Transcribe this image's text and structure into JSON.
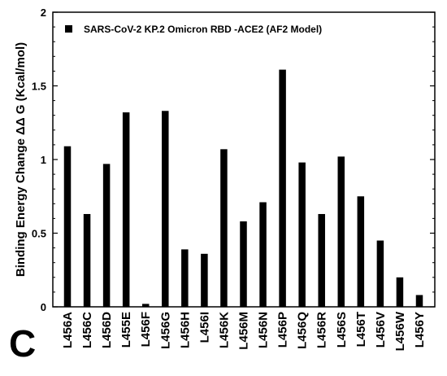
{
  "panel_label": "C",
  "chart_data": {
    "type": "bar",
    "ylabel": "Binding  Energy Change ΔΔ G (Kcal/mol)",
    "ylim": [
      0,
      2
    ],
    "yticks": [
      "0",
      "0.5",
      "1",
      "1.5",
      "2"
    ],
    "legend": {
      "placement": "top-left",
      "entries": [
        "SARS-CoV-2 KP.2 Omicron RBD -ACE2  (AF2  Model)"
      ]
    },
    "categories": [
      "L456A",
      "L456C",
      "L456D",
      "L455E",
      "L456F",
      "L456G",
      "L456H",
      "L456I",
      "L456K",
      "L456M",
      "L456N",
      "L456P",
      "L456Q",
      "L456R",
      "L456S",
      "L456T",
      "L456V",
      "L456W",
      "L456Y"
    ],
    "series": [
      {
        "name": "SARS-CoV-2 KP.2 Omicron RBD -ACE2  (AF2  Model)",
        "values": [
          1.09,
          0.63,
          0.97,
          1.32,
          0.02,
          1.33,
          0.39,
          0.36,
          1.07,
          0.58,
          0.71,
          1.61,
          0.98,
          0.63,
          1.02,
          0.75,
          0.45,
          0.2,
          0.08
        ]
      }
    ],
    "bar_color": "#000000",
    "grid": false
  }
}
